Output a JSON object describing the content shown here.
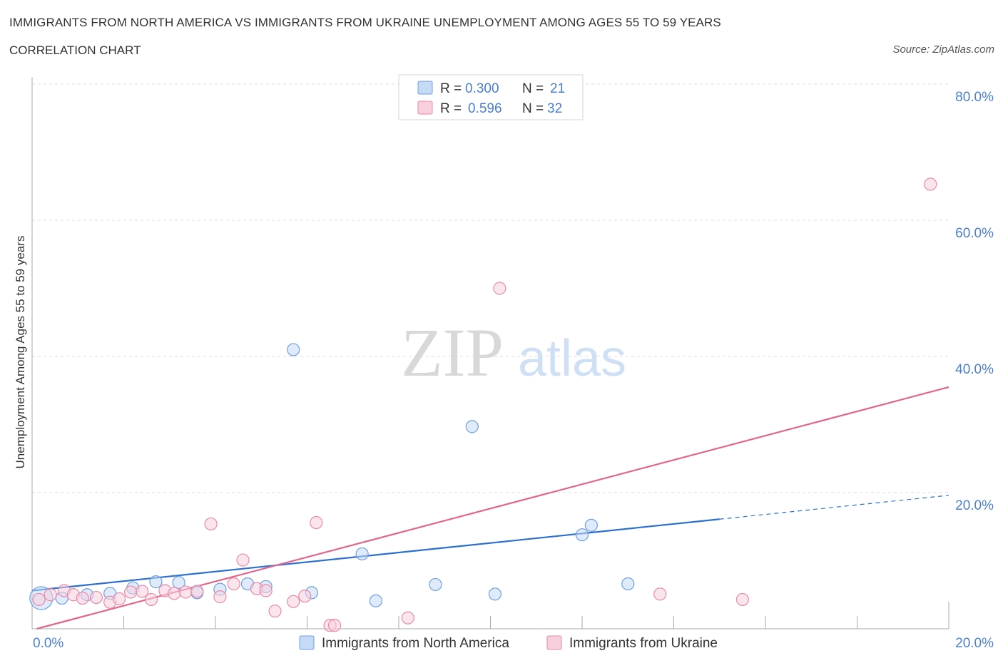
{
  "header": {
    "title": "IMMIGRANTS FROM NORTH AMERICA VS IMMIGRANTS FROM UKRAINE UNEMPLOYMENT AMONG AGES 55 TO 59 YEARS",
    "subtitle": "CORRELATION CHART",
    "source": "Source: ZipAtlas.com"
  },
  "watermark": {
    "zip": "ZIP",
    "atlas": "atlas"
  },
  "colors": {
    "north_america": "#6f9fe0",
    "north_america_fill": "#c5daf7",
    "north_america_line": "#2b6fcf",
    "ukraine": "#e88aa8",
    "ukraine_fill": "#f8cfdc",
    "ukraine_line": "#e06690",
    "axis_label": "#4a7fd0",
    "grid": "#dddddd"
  },
  "legend": {
    "r_label": "R =",
    "n_label": "N =",
    "rows": [
      {
        "series": "north_america",
        "r": "0.300",
        "n": "21"
      },
      {
        "series": "ukraine",
        "r": "0.596",
        "n": "32"
      }
    ]
  },
  "chart_data": {
    "type": "scatter",
    "title": "IMMIGRANTS FROM NORTH AMERICA VS IMMIGRANTS FROM UKRAINE UNEMPLOYMENT AMONG AGES 55 TO 59 YEARS",
    "xlabel": "",
    "ylabel": "Unemployment Among Ages 55 to 59 years",
    "xlim": [
      0,
      20
    ],
    "ylim": [
      0,
      80
    ],
    "x_tick_labels": [
      {
        "value": 0,
        "label": "0.0%"
      },
      {
        "value": 20,
        "label": "20.0%"
      }
    ],
    "y_tick_labels": [
      {
        "value": 20,
        "label": "20.0%"
      },
      {
        "value": 40,
        "label": "40.0%"
      },
      {
        "value": 60,
        "label": "60.0%"
      },
      {
        "value": 80,
        "label": "80.0%"
      }
    ],
    "grid": true,
    "legend_position": "top-center",
    "series": [
      {
        "name": "Immigrants from North America",
        "key": "north_america",
        "r": 0.3,
        "n": 21,
        "points": [
          {
            "x": 0.2,
            "y": 4.5,
            "size": "large"
          },
          {
            "x": 0.65,
            "y": 4.5
          },
          {
            "x": 1.2,
            "y": 5.0
          },
          {
            "x": 1.7,
            "y": 5.2
          },
          {
            "x": 2.2,
            "y": 6.0
          },
          {
            "x": 2.7,
            "y": 6.9
          },
          {
            "x": 3.2,
            "y": 6.8
          },
          {
            "x": 3.6,
            "y": 5.3
          },
          {
            "x": 4.1,
            "y": 5.8
          },
          {
            "x": 4.7,
            "y": 6.6
          },
          {
            "x": 5.1,
            "y": 6.2
          },
          {
            "x": 5.7,
            "y": 41.0
          },
          {
            "x": 6.1,
            "y": 5.3
          },
          {
            "x": 7.2,
            "y": 11.0
          },
          {
            "x": 7.5,
            "y": 4.1
          },
          {
            "x": 8.8,
            "y": 6.5
          },
          {
            "x": 9.6,
            "y": 29.7
          },
          {
            "x": 10.1,
            "y": 5.1
          },
          {
            "x": 12.0,
            "y": 13.8
          },
          {
            "x": 12.2,
            "y": 15.2
          },
          {
            "x": 13.0,
            "y": 6.6
          }
        ],
        "trend": {
          "x0": 0,
          "y0": 5.6,
          "x1": 15.0,
          "y1": 16.1,
          "dash_to_x": 20,
          "dash_to_y": 19.6
        }
      },
      {
        "name": "Immigrants from Ukraine",
        "key": "ukraine",
        "r": 0.596,
        "n": 32,
        "points": [
          {
            "x": 0.15,
            "y": 4.3
          },
          {
            "x": 0.4,
            "y": 5.0
          },
          {
            "x": 0.7,
            "y": 5.6
          },
          {
            "x": 0.9,
            "y": 5.0
          },
          {
            "x": 1.1,
            "y": 4.5
          },
          {
            "x": 1.4,
            "y": 4.6
          },
          {
            "x": 1.7,
            "y": 3.9
          },
          {
            "x": 1.9,
            "y": 4.4
          },
          {
            "x": 2.15,
            "y": 5.4
          },
          {
            "x": 2.4,
            "y": 5.5
          },
          {
            "x": 2.6,
            "y": 4.3
          },
          {
            "x": 2.9,
            "y": 5.6
          },
          {
            "x": 3.1,
            "y": 5.2
          },
          {
            "x": 3.35,
            "y": 5.4
          },
          {
            "x": 3.6,
            "y": 5.5
          },
          {
            "x": 3.9,
            "y": 15.4
          },
          {
            "x": 4.1,
            "y": 4.7
          },
          {
            "x": 4.4,
            "y": 6.6
          },
          {
            "x": 4.6,
            "y": 10.1
          },
          {
            "x": 4.9,
            "y": 5.9
          },
          {
            "x": 5.1,
            "y": 5.6
          },
          {
            "x": 5.3,
            "y": 2.6
          },
          {
            "x": 5.7,
            "y": 4.0
          },
          {
            "x": 5.95,
            "y": 4.8
          },
          {
            "x": 6.2,
            "y": 15.6
          },
          {
            "x": 6.5,
            "y": 0.5
          },
          {
            "x": 6.6,
            "y": 0.5
          },
          {
            "x": 8.2,
            "y": 1.6
          },
          {
            "x": 10.2,
            "y": 50.0
          },
          {
            "x": 13.7,
            "y": 5.1
          },
          {
            "x": 15.5,
            "y": 4.3
          },
          {
            "x": 19.6,
            "y": 65.3
          }
        ],
        "trend": {
          "x0": 0.1,
          "y0": 0.0,
          "x1": 20,
          "y1": 35.5
        }
      }
    ]
  }
}
